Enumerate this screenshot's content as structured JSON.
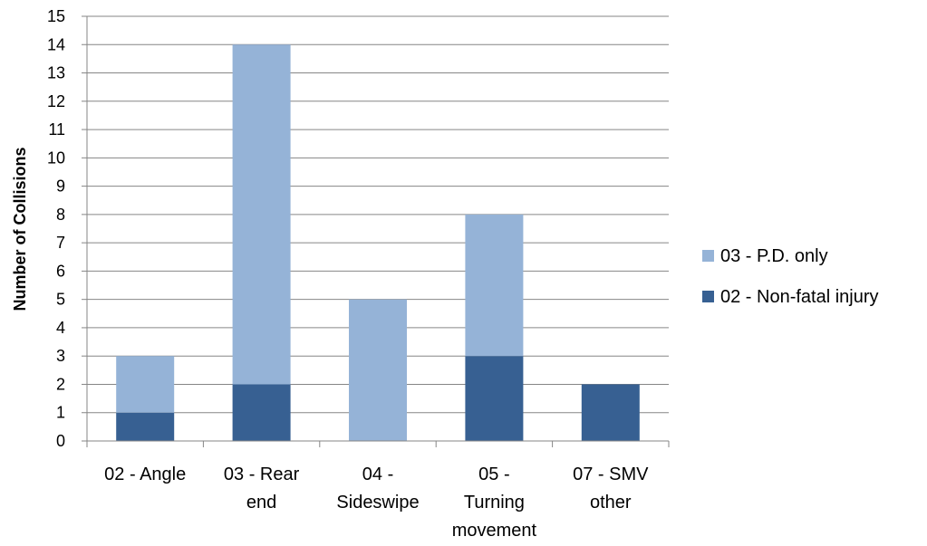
{
  "chart_data": {
    "type": "bar",
    "stacked": true,
    "title": "",
    "xlabel": "",
    "ylabel": "Number of Collisions",
    "ylim": [
      0,
      15
    ],
    "yticks": [
      0,
      1,
      2,
      3,
      4,
      5,
      6,
      7,
      8,
      9,
      10,
      11,
      12,
      13,
      14,
      15
    ],
    "grid": true,
    "legend_position": "right",
    "categories": [
      [
        "02 - Angle"
      ],
      [
        "03 - Rear",
        "end"
      ],
      [
        "04 -",
        "Sideswipe"
      ],
      [
        "05 -",
        "Turning",
        "movement"
      ],
      [
        "07 - SMV",
        "other"
      ]
    ],
    "series": [
      {
        "name": "02 - Non-fatal injury",
        "color": "#376092",
        "values": [
          1,
          2,
          0,
          3,
          2
        ]
      },
      {
        "name": "03 - P.D. only",
        "color": "#95B3D7",
        "values": [
          2,
          12,
          5,
          5,
          0
        ]
      }
    ],
    "legend_order": [
      1,
      0
    ],
    "colors": {
      "grid": "#868686",
      "axis": "#868686"
    }
  }
}
